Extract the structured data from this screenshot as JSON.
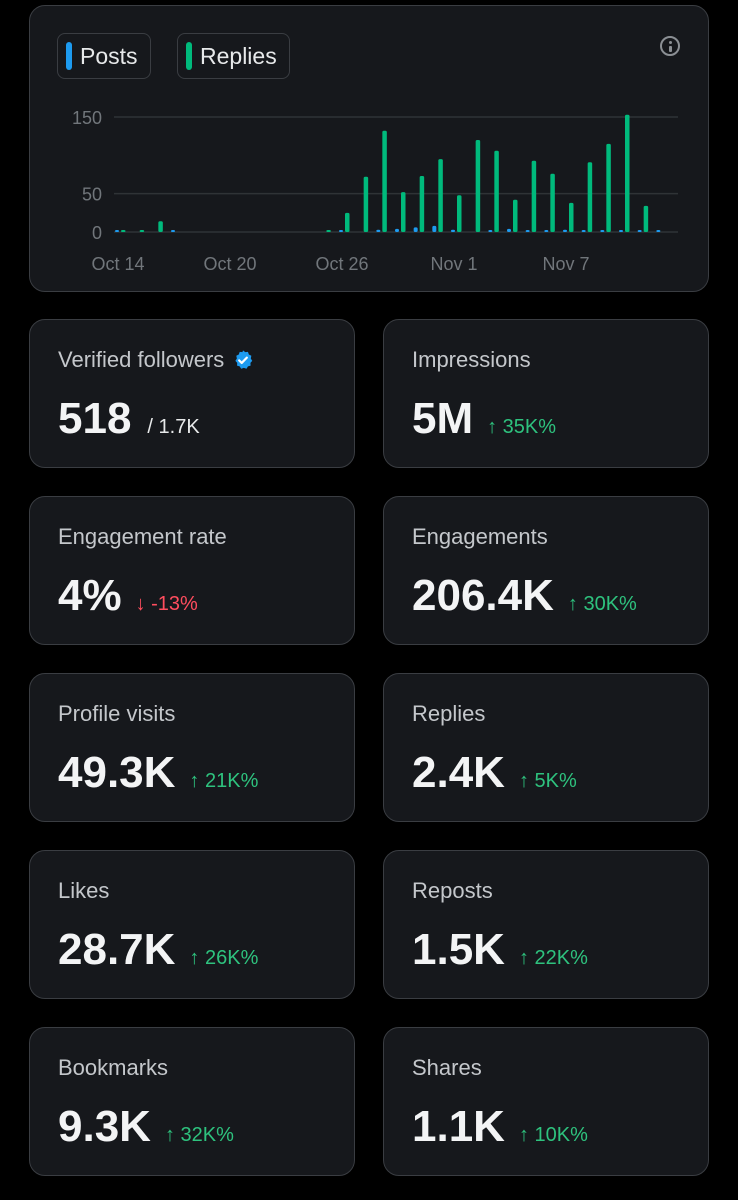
{
  "chart": {
    "legend": [
      {
        "label": "Posts",
        "color": "#1d9bf0"
      },
      {
        "label": "Replies",
        "color": "#00ba7c"
      }
    ],
    "info_icon": "info-icon"
  },
  "chart_data": {
    "type": "bar",
    "title": "",
    "xlabel": "",
    "ylabel": "",
    "ylim": [
      0,
      150
    ],
    "yticks": [
      0,
      50,
      150
    ],
    "ytick_labels": [
      "0",
      "50",
      "150"
    ],
    "xtick_labels": [
      {
        "label": "Oct 14",
        "day": 0
      },
      {
        "label": "Oct 20",
        "day": 6
      },
      {
        "label": "Oct 26",
        "day": 12
      },
      {
        "label": "Nov 1",
        "day": 18
      },
      {
        "label": "Nov 7",
        "day": 24
      }
    ],
    "series": [
      {
        "name": "Posts",
        "color": "#1d9bf0",
        "values": [
          1,
          0,
          0,
          1,
          0,
          0,
          0,
          0,
          0,
          0,
          0,
          0,
          2,
          0,
          3,
          4,
          6,
          8,
          3,
          0,
          2,
          4,
          2,
          2,
          3,
          1,
          2,
          2,
          2,
          1,
          0
        ]
      },
      {
        "name": "Replies",
        "color": "#00ba7c",
        "values": [
          2,
          2,
          14,
          0,
          0,
          0,
          0,
          0,
          0,
          0,
          0,
          1,
          25,
          72,
          132,
          52,
          73,
          95,
          48,
          120,
          106,
          42,
          93,
          76,
          38,
          91,
          115,
          153,
          34,
          0,
          0
        ]
      }
    ]
  },
  "stats": [
    {
      "title": "Verified followers",
      "value": "518",
      "sub": "/ 1.7K",
      "verified": true
    },
    {
      "title": "Impressions",
      "value": "5M",
      "delta": "↑ 35K%",
      "dir": "up"
    },
    {
      "title": "Engagement rate",
      "value": "4%",
      "delta": "↓ -13%",
      "dir": "down"
    },
    {
      "title": "Engagements",
      "value": "206.4K",
      "delta": "↑ 30K%",
      "dir": "up"
    },
    {
      "title": "Profile visits",
      "value": "49.3K",
      "delta": "↑ 21K%",
      "dir": "up"
    },
    {
      "title": "Replies",
      "value": "2.4K",
      "delta": "↑ 5K%",
      "dir": "up"
    },
    {
      "title": "Likes",
      "value": "28.7K",
      "delta": "↑ 26K%",
      "dir": "up"
    },
    {
      "title": "Reposts",
      "value": "1.5K",
      "delta": "↑ 22K%",
      "dir": "up"
    },
    {
      "title": "Bookmarks",
      "value": "9.3K",
      "delta": "↑ 32K%",
      "dir": "up"
    },
    {
      "title": "Shares",
      "value": "1.1K",
      "delta": "↑ 10K%",
      "dir": "up"
    }
  ],
  "colors": {
    "up": "#2ec27e",
    "down": "#ff4d5e",
    "verified": "#1d9bf0"
  }
}
